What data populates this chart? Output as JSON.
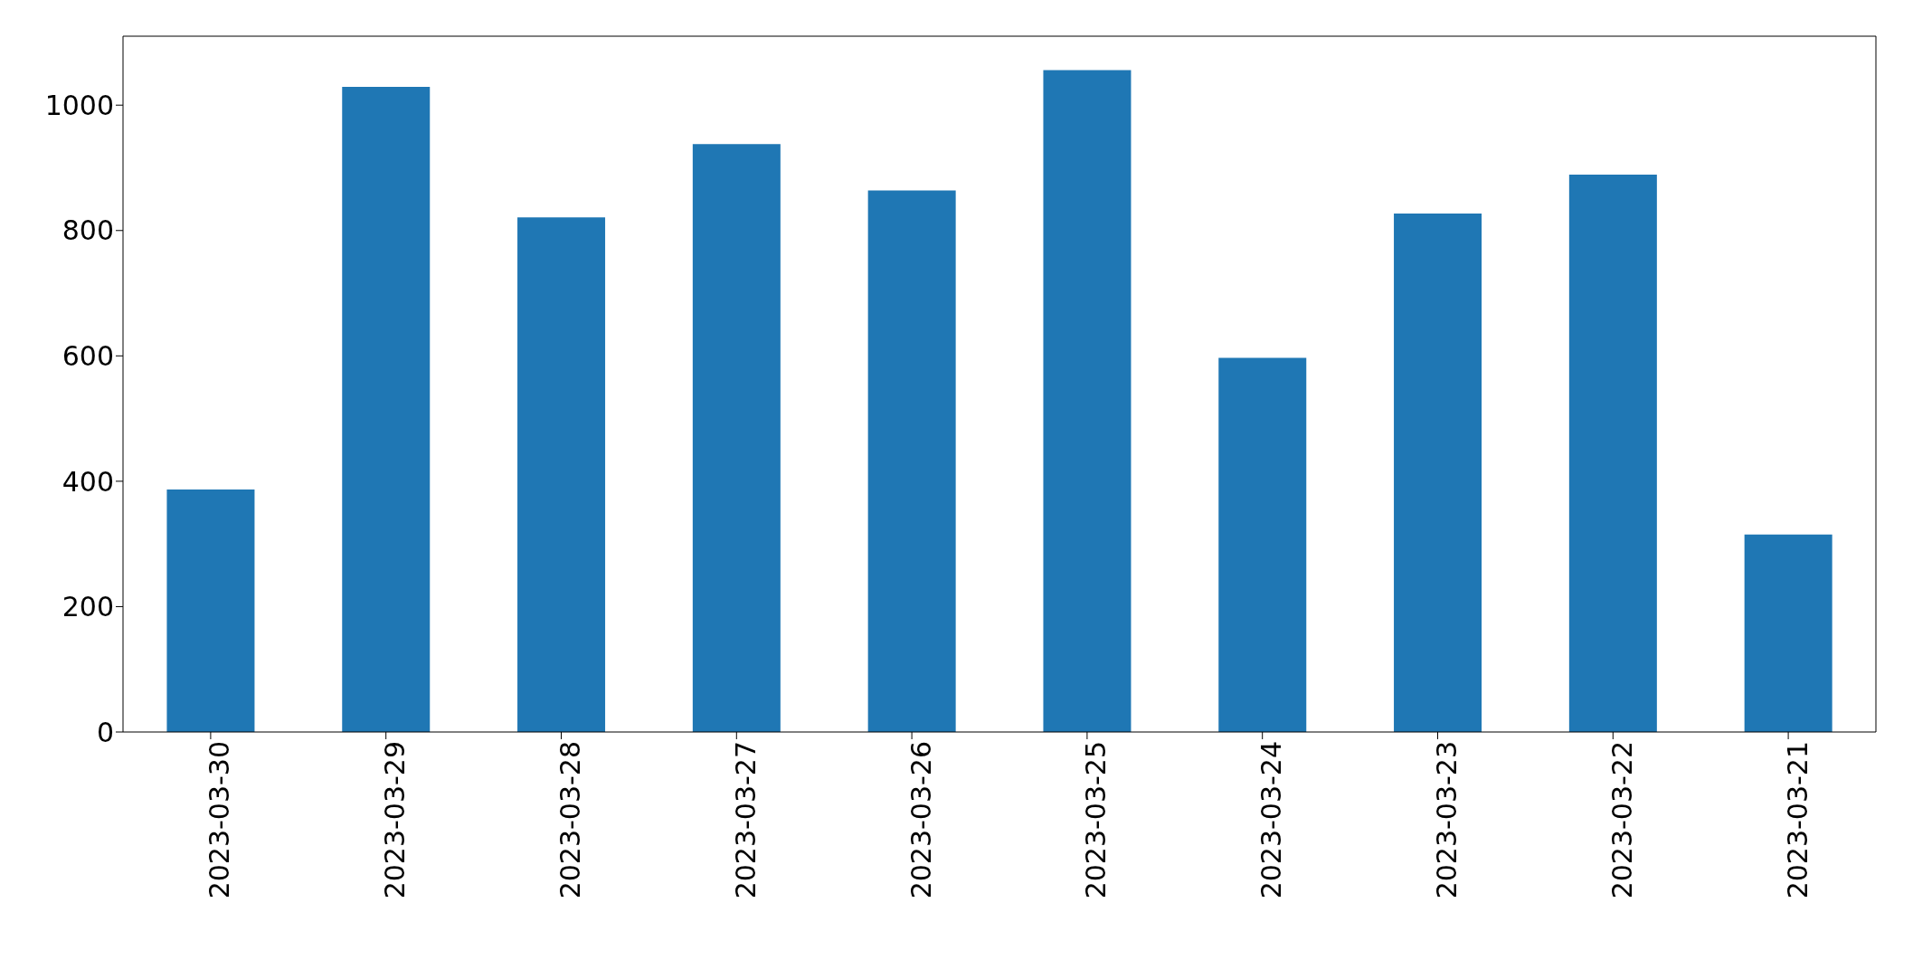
{
  "chart_data": {
    "type": "bar",
    "categories": [
      "2023-03-30",
      "2023-03-29",
      "2023-03-28",
      "2023-03-27",
      "2023-03-26",
      "2023-03-25",
      "2023-03-24",
      "2023-03-23",
      "2023-03-22",
      "2023-03-21"
    ],
    "values": [
      387,
      1029,
      821,
      938,
      864,
      1056,
      597,
      827,
      889,
      315
    ],
    "color": "#1f77b4",
    "ylim": [
      0,
      1110
    ],
    "yticks": [
      0,
      200,
      400,
      600,
      800,
      1000
    ],
    "grid": false
  }
}
